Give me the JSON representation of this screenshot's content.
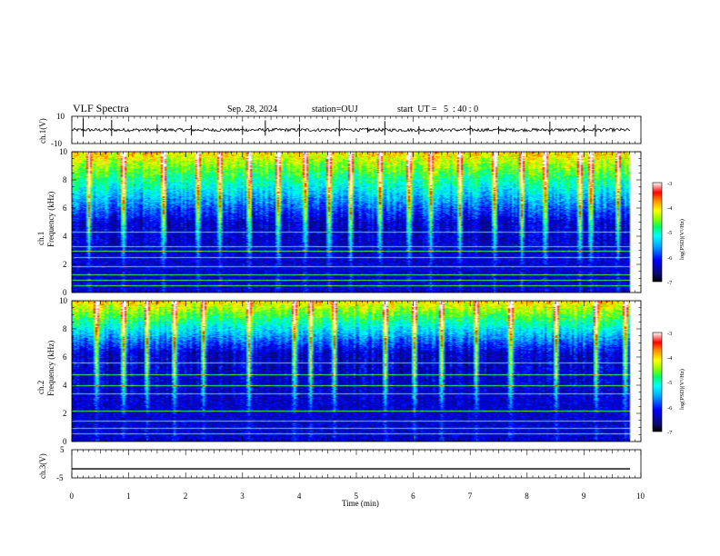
{
  "header": {
    "title": "VLF Spectra",
    "date": "Sep. 28, 2024",
    "station": "station=OUJ",
    "start_time": "start  UT =   5  : 40 : 0"
  },
  "colors": {
    "background": "#ffffff",
    "axis": "#000000",
    "colormap": [
      "#000000",
      "#0a0a6e",
      "#0000ff",
      "#00aaff",
      "#00ffff",
      "#00ff66",
      "#88ff00",
      "#ffff00",
      "#ff8800",
      "#ff0000",
      "#ff9999",
      "#ffffff"
    ]
  },
  "chart_data": [
    {
      "type": "line",
      "name": "ch1-waveform",
      "ylabel": "ch.1(V)",
      "ylim": [
        -10,
        10
      ],
      "ytick_labels": [
        "10",
        "-10"
      ],
      "baseline": 0,
      "noise_amplitude": 1.2,
      "spikes": [
        0.2,
        0.7,
        1.5,
        2.1,
        3.0,
        3.4,
        4.0,
        4.7,
        5.2,
        5.5,
        6.1,
        7.0,
        7.5,
        8.4,
        9.0,
        9.2
      ]
    },
    {
      "type": "heatmap",
      "name": "ch1-spectrogram",
      "ylabel": "ch.1\nFrequency (kHz)",
      "ylabel_lines": [
        "ch.1",
        "Frequency (kHz)"
      ],
      "ylim": [
        0,
        10
      ],
      "ytick_labels": [
        "0",
        "2",
        "4",
        "6",
        "8",
        "10"
      ],
      "colorbar": {
        "label": "log(PSD)(V²/Hz)",
        "range": [
          -7,
          -3
        ],
        "tick_labels": [
          "-3",
          "-4",
          "-5",
          "-6",
          "-7"
        ]
      },
      "background_level": -6.3,
      "band_floor_khz": 5.0,
      "horizontal_lines_khz": [
        0.5,
        0.9,
        1.3,
        1.9,
        2.5,
        3.0,
        3.3,
        4.3
      ],
      "impulse_times_min": [
        0.3,
        0.9,
        1.6,
        2.2,
        2.6,
        3.1,
        3.6,
        4.1,
        4.5,
        4.9,
        5.4,
        5.9,
        6.3,
        6.8,
        7.4,
        7.9,
        8.3,
        8.9,
        9.1,
        9.6
      ]
    },
    {
      "type": "heatmap",
      "name": "ch2-spectrogram",
      "ylabel": "ch.2\nFrequency (kHz)",
      "ylabel_lines": [
        "ch.2",
        "Frequency (kHz)"
      ],
      "ylim": [
        0,
        10
      ],
      "ytick_labels": [
        "0",
        "2",
        "4",
        "6",
        "8",
        "10"
      ],
      "colorbar": {
        "label": "log(PSD)(V²/Hz)",
        "range": [
          -7,
          -3
        ],
        "tick_labels": [
          "-3",
          "-4",
          "-5",
          "-6",
          "-7"
        ]
      },
      "background_level": -6.3,
      "band_floor_khz": 6.3,
      "horizontal_lines_khz": [
        0.6,
        1.0,
        1.5,
        2.2,
        3.4,
        4.0,
        4.8,
        5.6
      ],
      "impulse_times_min": [
        0.4,
        0.9,
        1.3,
        1.8,
        2.3,
        3.1,
        3.9,
        4.2,
        4.6,
        5.5,
        6.0,
        6.5,
        7.1,
        7.7,
        8.5,
        9.2,
        9.7
      ]
    },
    {
      "type": "line",
      "name": "ch3-waveform",
      "ylabel": "ch.3(V)",
      "ylim": [
        -5,
        5
      ],
      "ytick_labels": [
        "5",
        "-5"
      ],
      "baseline": -1.8,
      "xlabel": "Time (min)",
      "xlim": [
        0,
        10
      ],
      "xtick_labels": [
        "0",
        "1",
        "2",
        "3",
        "4",
        "5",
        "6",
        "7",
        "8",
        "9",
        "10"
      ]
    }
  ]
}
